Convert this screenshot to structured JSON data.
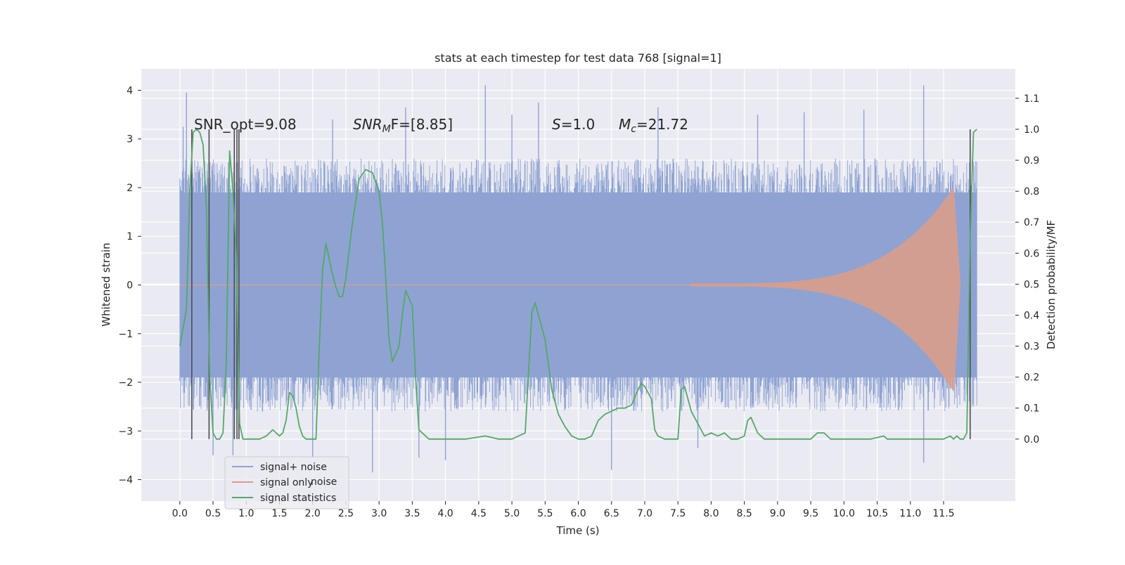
{
  "chart_data": {
    "type": "line",
    "title": "stats at each timestep for test data 768 [signal=1]",
    "xlabel": "Time (s)",
    "ylabel": "Whitened strain",
    "y2label": "Detection probability/MF",
    "xlim": [
      -0.58,
      12.58
    ],
    "ylim": [
      -4.44,
      4.44
    ],
    "y2lim": [
      -0.2,
      1.195
    ],
    "xticks": [
      0.0,
      0.5,
      1.0,
      1.5,
      2.0,
      2.5,
      3.0,
      3.5,
      4.0,
      4.5,
      5.0,
      5.5,
      6.0,
      6.5,
      7.0,
      7.5,
      8.0,
      8.5,
      9.0,
      9.5,
      10.0,
      10.5,
      11.0,
      11.5
    ],
    "xtick_labels": [
      "0.0",
      "0.5",
      "1.0",
      "1.5",
      "2.0",
      "2.5",
      "3.0",
      "3.5",
      "4.0",
      "4.5",
      "5.0",
      "5.5",
      "6.0",
      "6.5",
      "7.0",
      "7.5",
      "8.0",
      "8.5",
      "9.0",
      "9.5",
      "10.0",
      "10.5",
      "11.0",
      "11.5"
    ],
    "yticks": [
      -4,
      -3,
      -2,
      -1,
      0,
      1,
      2,
      3,
      4
    ],
    "ytick_labels": [
      "−4",
      "−3",
      "−2",
      "−1",
      "0",
      "1",
      "2",
      "3",
      "4"
    ],
    "y2ticks": [
      0.0,
      0.1,
      0.2,
      0.3,
      0.4,
      0.5,
      0.6,
      0.7,
      0.8,
      0.9,
      1.0,
      1.1
    ],
    "y2tick_labels": [
      "0.0",
      "0.1",
      "0.2",
      "0.3",
      "0.4",
      "0.5",
      "0.6",
      "0.7",
      "0.8",
      "0.9",
      "1.0",
      "1.1"
    ],
    "annotations": {
      "snr_opt": "SNR_opt=9.08",
      "snr_mf_pre": "SNR",
      "snr_mf_sub": "M",
      "snr_mf_post": "F=[8.85]",
      "s_pre": "S",
      "s_post": "=1.0",
      "mc_pre": "M",
      "mc_sub": "c",
      "mc_post": "=21.72"
    },
    "legend": {
      "position": "lower-left",
      "entries": [
        {
          "label": "signal+ noise",
          "color": "#8ea3d2"
        },
        {
          "label": "signal only",
          "color": "#dd9d86"
        },
        {
          "label": "signal statistics",
          "color": "#55a868"
        }
      ],
      "ghost_text": "noise"
    },
    "noise": {
      "name": "signal+ noise",
      "color": "#8ea3d2",
      "t_start": 0.0,
      "t_end": 12.0,
      "band": [
        -1.9,
        1.9
      ],
      "typical_extent": 2.6,
      "spikes": [
        {
          "t": 0.1,
          "v": 3.95
        },
        {
          "t": 0.05,
          "v": 3.25
        },
        {
          "t": 0.5,
          "v": -3.5
        },
        {
          "t": 0.8,
          "v": -3.5
        },
        {
          "t": 2.0,
          "v": -3.55
        },
        {
          "t": 2.3,
          "v": 3.4
        },
        {
          "t": 2.9,
          "v": -3.85
        },
        {
          "t": 3.4,
          "v": 3.65
        },
        {
          "t": 3.6,
          "v": -3.55
        },
        {
          "t": 4.0,
          "v": -3.6
        },
        {
          "t": 4.6,
          "v": 4.1
        },
        {
          "t": 5.0,
          "v": 3.5
        },
        {
          "t": 5.4,
          "v": 3.75
        },
        {
          "t": 6.5,
          "v": -3.8
        },
        {
          "t": 7.2,
          "v": 3.65
        },
        {
          "t": 7.8,
          "v": -3.35
        },
        {
          "t": 8.7,
          "v": 3.5
        },
        {
          "t": 9.4,
          "v": 3.55
        },
        {
          "t": 10.3,
          "v": 3.6
        },
        {
          "t": 11.2,
          "v": 4.1
        },
        {
          "t": 11.2,
          "v": -3.65
        },
        {
          "t": 11.9,
          "v": -3.0
        }
      ]
    },
    "signal_only": {
      "name": "signal only",
      "color": "#dd9d86",
      "t_start": 7.7,
      "t_peak": 11.65,
      "t_end": 11.75,
      "peak_amplitude": 2.0
    },
    "statistics": {
      "name": "signal statistics",
      "color": "#55a868",
      "x": [
        0.0,
        0.1,
        0.15,
        0.2,
        0.25,
        0.3,
        0.35,
        0.4,
        0.45,
        0.5,
        0.55,
        0.6,
        0.65,
        0.7,
        0.75,
        0.8,
        0.85,
        0.9,
        0.95,
        1.0,
        1.05,
        1.1,
        1.2,
        1.3,
        1.4,
        1.45,
        1.5,
        1.55,
        1.6,
        1.65,
        1.7,
        1.75,
        1.8,
        1.85,
        1.9,
        2.0,
        2.05,
        2.1,
        2.15,
        2.2,
        2.25,
        2.3,
        2.35,
        2.4,
        2.45,
        2.5,
        2.6,
        2.7,
        2.8,
        2.9,
        3.0,
        3.05,
        3.1,
        3.15,
        3.2,
        3.3,
        3.35,
        3.4,
        3.5,
        3.55,
        3.6,
        3.7,
        3.75,
        3.8,
        3.9,
        4.0,
        4.3,
        4.6,
        4.8,
        5.0,
        5.2,
        5.3,
        5.35,
        5.4,
        5.45,
        5.5,
        5.6,
        5.7,
        5.8,
        5.9,
        6.0,
        6.1,
        6.2,
        6.3,
        6.4,
        6.5,
        6.6,
        6.7,
        6.8,
        6.9,
        6.95,
        7.0,
        7.1,
        7.15,
        7.2,
        7.3,
        7.4,
        7.5,
        7.55,
        7.6,
        7.7,
        7.8,
        7.9,
        8.0,
        8.1,
        8.2,
        8.3,
        8.4,
        8.5,
        8.55,
        8.6,
        8.7,
        8.8,
        9.0,
        9.3,
        9.5,
        9.55,
        9.6,
        9.7,
        9.8,
        9.9,
        10.0,
        10.2,
        10.4,
        10.6,
        10.65,
        10.7,
        10.8,
        11.0,
        11.2,
        11.4,
        11.5,
        11.6,
        11.65,
        11.7,
        11.75,
        11.8,
        11.85,
        11.9,
        11.95,
        12.0
      ],
      "y": [
        0.3,
        0.42,
        0.8,
        0.99,
        1.0,
        0.99,
        0.95,
        0.75,
        0.2,
        0.02,
        0.0,
        0.0,
        0.02,
        0.25,
        0.93,
        0.8,
        0.6,
        0.05,
        0.0,
        0.0,
        0.0,
        0.0,
        0.0,
        0.01,
        0.03,
        0.02,
        0.01,
        0.02,
        0.06,
        0.15,
        0.14,
        0.1,
        0.04,
        0.01,
        0.0,
        0.0,
        0.0,
        0.3,
        0.55,
        0.63,
        0.58,
        0.53,
        0.49,
        0.46,
        0.46,
        0.52,
        0.7,
        0.84,
        0.87,
        0.86,
        0.8,
        0.7,
        0.52,
        0.32,
        0.25,
        0.3,
        0.4,
        0.48,
        0.43,
        0.2,
        0.03,
        0.01,
        0.0,
        0.0,
        0.0,
        0.0,
        0.0,
        0.01,
        0.0,
        0.0,
        0.02,
        0.41,
        0.44,
        0.4,
        0.36,
        0.32,
        0.16,
        0.08,
        0.04,
        0.01,
        0.0,
        0.0,
        0.01,
        0.06,
        0.08,
        0.09,
        0.1,
        0.1,
        0.11,
        0.16,
        0.18,
        0.17,
        0.13,
        0.03,
        0.01,
        0.0,
        0.0,
        0.0,
        0.16,
        0.17,
        0.09,
        0.05,
        0.01,
        0.02,
        0.01,
        0.02,
        0.0,
        0.0,
        0.01,
        0.06,
        0.07,
        0.02,
        0.0,
        0.0,
        0.0,
        0.0,
        0.01,
        0.02,
        0.02,
        0.0,
        0.0,
        0.0,
        0.0,
        0.0,
        0.01,
        0.0,
        0.0,
        0.0,
        0.0,
        0.0,
        0.0,
        0.0,
        0.01,
        0.0,
        0.01,
        0.0,
        0.0,
        0.02,
        0.65,
        0.99,
        1.0
      ]
    },
    "markers": {
      "color": "#4d4d4d",
      "y_range": [
        0.0,
        1.0
      ],
      "times": [
        0.18,
        0.44,
        0.82,
        0.86,
        0.89,
        11.9
      ]
    }
  }
}
